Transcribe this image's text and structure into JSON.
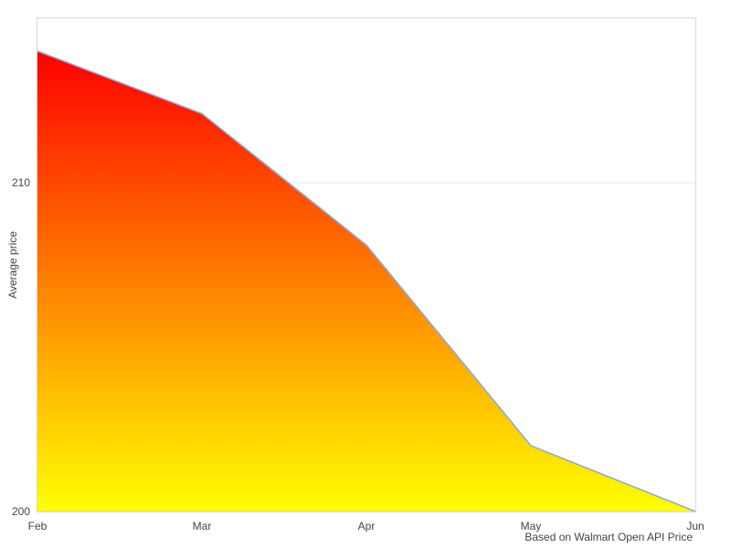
{
  "chart_data": {
    "type": "area",
    "x": [
      "Feb",
      "Mar",
      "Apr",
      "May",
      "Jun"
    ],
    "series": [
      {
        "name": "Average price",
        "values": [
          214.0,
          212.1,
          208.1,
          202.0,
          200.0
        ]
      }
    ],
    "title": "",
    "xlabel": "",
    "ylabel": "Average price",
    "ylim": [
      200,
      215
    ],
    "yticks": [
      200,
      210
    ],
    "grid": "horizontal",
    "legend": "none",
    "caption": "Based on Walmart Open API Price",
    "colors": {
      "fill_top": "#ff0000",
      "fill_bottom": "#ffff00",
      "line": "#92abd6",
      "grid": "#e8e8e8",
      "border": "#d9d9d9",
      "text": "#444444",
      "background": "#ffffff"
    }
  }
}
